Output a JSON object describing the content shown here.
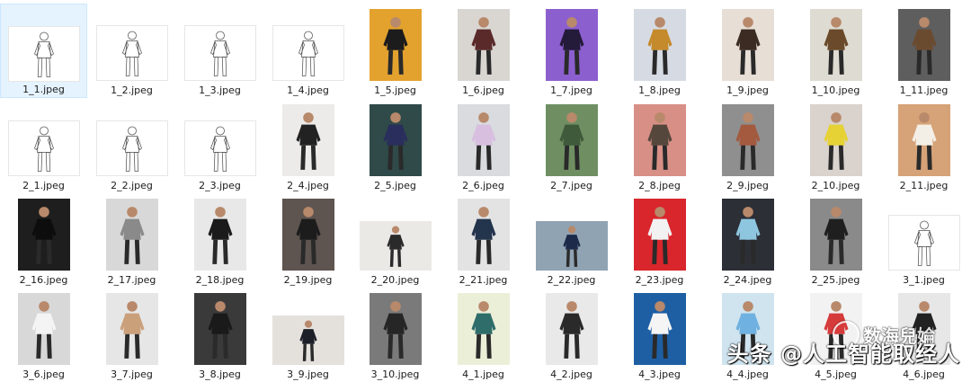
{
  "files": [
    {
      "name": "1_1.jpeg",
      "kind": "sketch",
      "bg": "#ffffff",
      "fg": "#ffffff",
      "selected": true
    },
    {
      "name": "1_2.jpeg",
      "kind": "sketch",
      "bg": "#ffffff",
      "fg": "#ffffff"
    },
    {
      "name": "1_3.jpeg",
      "kind": "sketch",
      "bg": "#ffffff",
      "fg": "#ffffff"
    },
    {
      "name": "1_4.jpeg",
      "kind": "sketch",
      "bg": "#ffffff",
      "fg": "#ffffff"
    },
    {
      "name": "1_5.jpeg",
      "kind": "photo",
      "bg": "#e3a22e",
      "fg": "#1c1c1c"
    },
    {
      "name": "1_6.jpeg",
      "kind": "photo",
      "bg": "#d9d6d2",
      "fg": "#5a2a2a"
    },
    {
      "name": "1_7.jpeg",
      "kind": "photo",
      "bg": "#8c5fcf",
      "fg": "#241a3a"
    },
    {
      "name": "1_8.jpeg",
      "kind": "photo",
      "bg": "#d6dbe3",
      "fg": "#c58a2c"
    },
    {
      "name": "1_9.jpeg",
      "kind": "photo",
      "bg": "#e7ded6",
      "fg": "#3b2b22"
    },
    {
      "name": "1_10.jpeg",
      "kind": "photo",
      "bg": "#dedbd2",
      "fg": "#6a4a2a"
    },
    {
      "name": "1_11.jpeg",
      "kind": "photo",
      "bg": "#5e5e5e",
      "fg": "#6b4b30"
    },
    {
      "name": "2_1.jpeg",
      "kind": "sketch",
      "bg": "#ffffff",
      "fg": "#ffffff"
    },
    {
      "name": "2_2.jpeg",
      "kind": "sketch",
      "bg": "#ffffff",
      "fg": "#ffffff"
    },
    {
      "name": "2_3.jpeg",
      "kind": "sketch",
      "bg": "#ffffff",
      "fg": "#ffffff"
    },
    {
      "name": "2_4.jpeg",
      "kind": "photo",
      "bg": "#ecebe9",
      "fg": "#222222"
    },
    {
      "name": "2_5.jpeg",
      "kind": "photo",
      "bg": "#2f4a48",
      "fg": "#2a2e5c"
    },
    {
      "name": "2_6.jpeg",
      "kind": "photo",
      "bg": "#d9dbde",
      "fg": "#d8bfe0"
    },
    {
      "name": "2_7.jpeg",
      "kind": "photo",
      "bg": "#6f8f63",
      "fg": "#3f5a3a"
    },
    {
      "name": "2_8.jpeg",
      "kind": "photo",
      "bg": "#d88f86",
      "fg": "#55473c"
    },
    {
      "name": "2_9.jpeg",
      "kind": "photo",
      "bg": "#8f8f8f",
      "fg": "#a35a3f"
    },
    {
      "name": "2_10.jpeg",
      "kind": "photo",
      "bg": "#d9d2cd",
      "fg": "#e6d235"
    },
    {
      "name": "2_11.jpeg",
      "kind": "photo",
      "bg": "#d6a277",
      "fg": "#f4efe6"
    },
    {
      "name": "2_16.jpeg",
      "kind": "photo",
      "bg": "#1e1e1e",
      "fg": "#0d0d0d"
    },
    {
      "name": "2_17.jpeg",
      "kind": "photo",
      "bg": "#d8d8d8",
      "fg": "#8a8a8a"
    },
    {
      "name": "2_18.jpeg",
      "kind": "photo",
      "bg": "#e8e8e8",
      "fg": "#1b1b1b"
    },
    {
      "name": "2_19.jpeg",
      "kind": "photo",
      "bg": "#5e5450",
      "fg": "#1c1c1c"
    },
    {
      "name": "2_20.jpeg",
      "kind": "photo",
      "bg": "#ebe9e6",
      "fg": "#2a2a2a"
    },
    {
      "name": "2_21.jpeg",
      "kind": "photo",
      "bg": "#e3e3e3",
      "fg": "#23344d"
    },
    {
      "name": "2_22.jpeg",
      "kind": "photo",
      "bg": "#8fa3b3",
      "fg": "#1d2a4a"
    },
    {
      "name": "2_23.jpeg",
      "kind": "photo",
      "bg": "#d8262c",
      "fg": "#f2f2f2"
    },
    {
      "name": "2_24.jpeg",
      "kind": "photo",
      "bg": "#2c2f36",
      "fg": "#8fc6df"
    },
    {
      "name": "2_25.jpeg",
      "kind": "photo",
      "bg": "#8a8a8a",
      "fg": "#1f1f1f"
    },
    {
      "name": "3_1.jpeg",
      "kind": "sketch",
      "bg": "#ffffff",
      "fg": "#ffffff"
    },
    {
      "name": "3_6.jpeg",
      "kind": "photo",
      "bg": "#d8d8d8",
      "fg": "#f4f4f4"
    },
    {
      "name": "3_7.jpeg",
      "kind": "photo",
      "bg": "#e6e6e6",
      "fg": "#caa07a"
    },
    {
      "name": "3_8.jpeg",
      "kind": "photo",
      "bg": "#3a3a3a",
      "fg": "#1a1a1a"
    },
    {
      "name": "3_9.jpeg",
      "kind": "photo",
      "bg": "#e4e1dd",
      "fg": "#1c1f28"
    },
    {
      "name": "3_10.jpeg",
      "kind": "photo",
      "bg": "#7a7a7a",
      "fg": "#262626"
    },
    {
      "name": "4_1.jpeg",
      "kind": "photo",
      "bg": "#ecefd8",
      "fg": "#2e6d6a"
    },
    {
      "name": "4_2.jpeg",
      "kind": "photo",
      "bg": "#e9e9e9",
      "fg": "#2a2a2a"
    },
    {
      "name": "4_3.jpeg",
      "kind": "photo",
      "bg": "#1e5fa3",
      "fg": "#f5f5f5"
    },
    {
      "name": "4_4.jpeg",
      "kind": "photo",
      "bg": "#cfe4ef",
      "fg": "#6fb1e0"
    },
    {
      "name": "4_5.jpeg",
      "kind": "photo",
      "bg": "#f2f2f2",
      "fg": "#d63b3b"
    },
    {
      "name": "4_6.jpeg",
      "kind": "photo",
      "bg": "#e7e7e7",
      "fg": "#222222"
    }
  ],
  "watermark": {
    "logo_text": "数海兒婨",
    "text": "头条 @人工智能取经人"
  }
}
